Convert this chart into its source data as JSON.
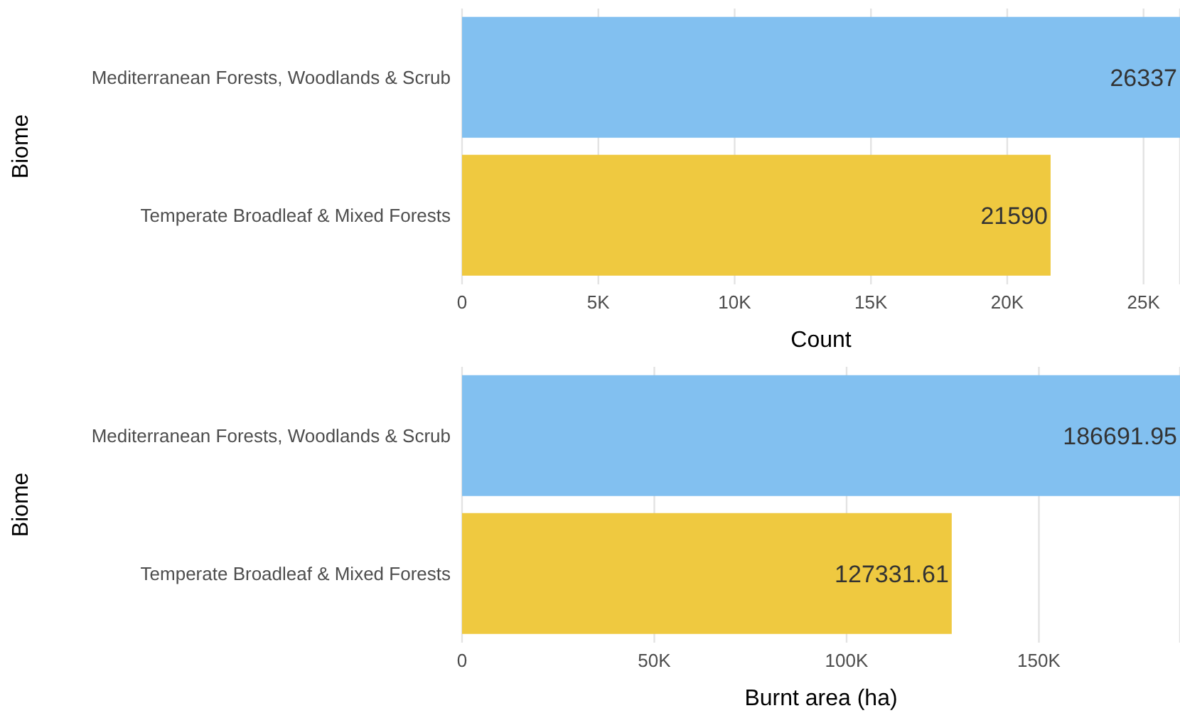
{
  "chart_data": [
    {
      "type": "bar",
      "orientation": "horizontal",
      "categories": [
        "Mediterranean Forests, Woodlands & Scrub",
        "Temperate Broadleaf & Mixed Forests"
      ],
      "values": [
        26337,
        21590
      ],
      "colors": [
        "#82c0f0",
        "#efc940"
      ],
      "xlim": [
        0,
        26337
      ],
      "xticks": [
        0,
        {
          "value": 5000,
          "label": "5K"
        },
        {
          "value": 10000,
          "label": "10K"
        },
        {
          "value": 15000,
          "label": "15K"
        },
        {
          "value": 20000,
          "label": "20K"
        },
        {
          "value": 25000,
          "label": "25K"
        }
      ],
      "xlabel": "Count",
      "ylabel": "Biome",
      "grid": "x",
      "data_labels": true
    },
    {
      "type": "bar",
      "orientation": "horizontal",
      "categories": [
        "Mediterranean Forests, Woodlands & Scrub",
        "Temperate Broadleaf & Mixed Forests"
      ],
      "values": [
        186691.95,
        127331.61
      ],
      "colors": [
        "#82c0f0",
        "#efc940"
      ],
      "xlim": [
        0,
        186691.95
      ],
      "xticks": [
        0,
        {
          "value": 50000,
          "label": "50K"
        },
        {
          "value": 100000,
          "label": "100K"
        },
        {
          "value": 150000,
          "label": "150K"
        }
      ],
      "xlabel": "Burnt area (ha)",
      "ylabel": "Biome",
      "grid": "x",
      "data_labels": true
    }
  ]
}
